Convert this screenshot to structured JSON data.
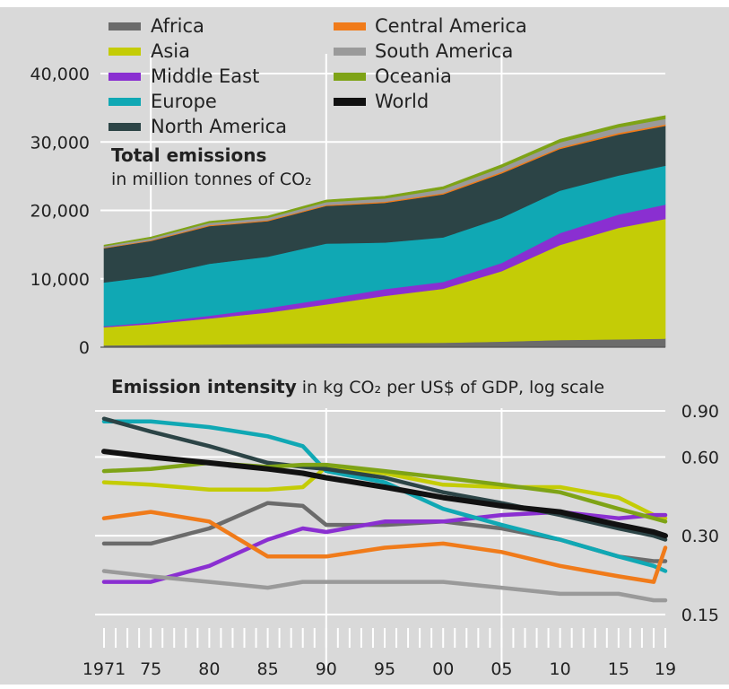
{
  "legend": [
    {
      "name": "Africa",
      "color": "#6b6b6b"
    },
    {
      "name": "Asia",
      "color": "#c4cc06"
    },
    {
      "name": "Middle East",
      "color": "#8a2fd1"
    },
    {
      "name": "Europe",
      "color": "#10a8b4"
    },
    {
      "name": "North America",
      "color": "#2c4446"
    },
    {
      "name": "Central America",
      "color": "#f07b1a"
    },
    {
      "name": "South America",
      "color": "#9a9a9a"
    },
    {
      "name": "Oceania",
      "color": "#7ea316"
    },
    {
      "name": "World",
      "color": "#111111"
    }
  ],
  "chart_data": [
    {
      "type": "area",
      "stacked": true,
      "title": "Total emissions",
      "subtitle": "in million tonnes of CO₂",
      "x": [
        1971,
        1975,
        1980,
        1985,
        1990,
        1995,
        2000,
        2005,
        2010,
        2015,
        2019
      ],
      "ylim": [
        0,
        40000
      ],
      "yticks": [
        0,
        10000,
        20000,
        30000,
        40000
      ],
      "ytick_labels": [
        "0",
        "10,000",
        "20,000",
        "30,000",
        "40,000"
      ],
      "series": [
        {
          "name": "Africa",
          "values": [
            270,
            330,
            400,
            480,
            550,
            600,
            650,
            820,
            1050,
            1150,
            1250
          ]
        },
        {
          "name": "Asia",
          "values": [
            2650,
            3050,
            3800,
            4600,
            5700,
            6900,
            7900,
            10300,
            13900,
            16300,
            17500
          ]
        },
        {
          "name": "Middle East",
          "values": [
            150,
            250,
            400,
            650,
            800,
            1000,
            1000,
            1200,
            1750,
            1950,
            2100
          ]
        },
        {
          "name": "Europe",
          "values": [
            6400,
            6700,
            7600,
            7500,
            8100,
            6800,
            6500,
            6600,
            6200,
            5700,
            5700
          ]
        },
        {
          "name": "North America",
          "values": [
            5000,
            5200,
            5500,
            5200,
            5500,
            5800,
            6300,
            6500,
            6100,
            6000,
            5800
          ]
        },
        {
          "name": "Central America",
          "values": [
            80,
            100,
            130,
            130,
            150,
            170,
            180,
            200,
            210,
            230,
            230
          ]
        },
        {
          "name": "South America",
          "values": [
            230,
            280,
            350,
            370,
            420,
            480,
            580,
            650,
            750,
            800,
            800
          ]
        },
        {
          "name": "Oceania",
          "values": [
            150,
            200,
            220,
            250,
            300,
            320,
            370,
            420,
            450,
            450,
            480
          ]
        }
      ]
    },
    {
      "type": "line",
      "title": "Emission intensity",
      "subtitle": "in kg CO₂ per US$ of GDP, log scale",
      "y_scale": "log",
      "ylim": [
        0.15,
        0.9
      ],
      "yticks": [
        0.15,
        0.3,
        0.6,
        0.9
      ],
      "ytick_labels": [
        "0.15",
        "0.30",
        "0.60",
        "0.90"
      ],
      "x_tick_labels": [
        "1971",
        "75",
        "80",
        "85",
        "90",
        "95",
        "00",
        "05",
        "10",
        "15",
        "19"
      ],
      "x": [
        1971,
        1975,
        1980,
        1985,
        1988,
        1990,
        1995,
        2000,
        2005,
        2010,
        2015,
        2018,
        2019
      ],
      "series": [
        {
          "name": "Africa",
          "values": [
            0.28,
            0.28,
            0.32,
            0.4,
            0.39,
            0.33,
            0.33,
            0.34,
            0.32,
            0.29,
            0.25,
            0.24,
            0.24
          ]
        },
        {
          "name": "Asia",
          "values": [
            0.48,
            0.47,
            0.45,
            0.45,
            0.46,
            0.55,
            0.52,
            0.47,
            0.46,
            0.46,
            0.42,
            0.36,
            0.35
          ]
        },
        {
          "name": "Middle East",
          "values": [
            0.2,
            0.2,
            0.23,
            0.29,
            0.32,
            0.31,
            0.34,
            0.34,
            0.36,
            0.37,
            0.35,
            0.36,
            0.36
          ]
        },
        {
          "name": "Europe",
          "values": [
            0.82,
            0.82,
            0.78,
            0.72,
            0.66,
            0.53,
            0.48,
            0.38,
            0.33,
            0.29,
            0.25,
            0.23,
            0.22
          ]
        },
        {
          "name": "North America",
          "values": [
            0.84,
            0.75,
            0.66,
            0.57,
            0.55,
            0.54,
            0.5,
            0.44,
            0.4,
            0.36,
            0.32,
            0.3,
            0.29
          ]
        },
        {
          "name": "Central America",
          "values": [
            0.35,
            0.37,
            0.34,
            0.25,
            0.25,
            0.25,
            0.27,
            0.28,
            0.26,
            0.23,
            0.21,
            0.2,
            0.27
          ]
        },
        {
          "name": "South America",
          "values": [
            0.22,
            0.21,
            0.2,
            0.19,
            0.2,
            0.2,
            0.2,
            0.2,
            0.19,
            0.18,
            0.18,
            0.17,
            0.17
          ]
        },
        {
          "name": "Oceania",
          "values": [
            0.53,
            0.54,
            0.57,
            0.55,
            0.56,
            0.56,
            0.53,
            0.5,
            0.47,
            0.44,
            0.38,
            0.35,
            0.34
          ]
        },
        {
          "name": "World",
          "values": [
            0.63,
            0.6,
            0.57,
            0.54,
            0.52,
            0.5,
            0.46,
            0.42,
            0.39,
            0.37,
            0.33,
            0.31,
            0.3
          ]
        }
      ]
    }
  ]
}
